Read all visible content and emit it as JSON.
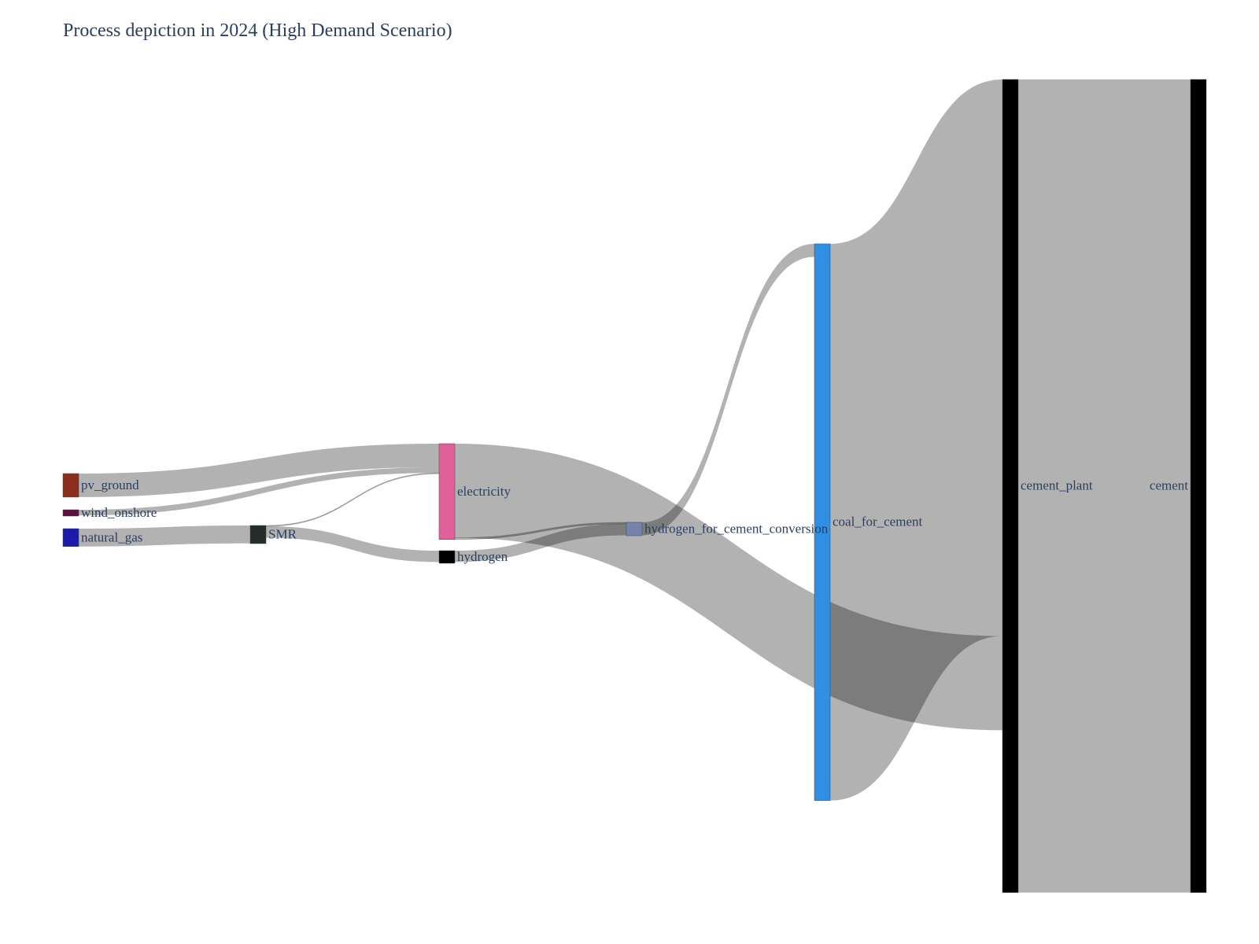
{
  "chart_data": {
    "type": "sankey",
    "title": "Process depiction in 2024 (High Demand Scenario)",
    "nodes": [
      {
        "id": "pv_ground",
        "label": "pv_ground",
        "color": "#8b2e1d"
      },
      {
        "id": "wind_onshore",
        "label": "wind_onshore",
        "color": "#5e0f3e"
      },
      {
        "id": "natural_gas",
        "label": "natural_gas",
        "color": "#1c1aab"
      },
      {
        "id": "SMR",
        "label": "SMR",
        "color": "#252d2a"
      },
      {
        "id": "electricity",
        "label": "electricity",
        "color": "#e0609a"
      },
      {
        "id": "hydrogen",
        "label": "hydrogen",
        "color": "#000000"
      },
      {
        "id": "hydrogen_for_cement_conversion",
        "label": "hydrogen_for_cement_conversion",
        "color": "#7684ad"
      },
      {
        "id": "coal_for_cement",
        "label": "coal_for_cement",
        "color": "#2f8fe3"
      },
      {
        "id": "cement_plant",
        "label": "cement_plant",
        "color": "#000000"
      },
      {
        "id": "cement",
        "label": "cement",
        "color": "#000000"
      }
    ],
    "links": [
      {
        "source": "pv_ground",
        "target": "electricity",
        "value": 29
      },
      {
        "source": "wind_onshore",
        "target": "electricity",
        "value": 7
      },
      {
        "source": "SMR",
        "target": "electricity",
        "value": 1
      },
      {
        "source": "natural_gas",
        "target": "SMR",
        "value": 22
      },
      {
        "source": "SMR",
        "target": "hydrogen",
        "value": 14
      },
      {
        "source": "electricity",
        "target": "hydrogen_for_cement_conversion",
        "value": 2
      },
      {
        "source": "hydrogen",
        "target": "hydrogen_for_cement_conversion",
        "value": 14
      },
      {
        "source": "electricity",
        "target": "cement_plant",
        "value": 116
      },
      {
        "source": "hydrogen_for_cement_conversion",
        "target": "coal_for_cement",
        "value": 16
      },
      {
        "source": "coal_for_cement",
        "target": "cement_plant",
        "value": 686
      },
      {
        "source": "cement_plant",
        "target": "cement",
        "value": 1002
      }
    ],
    "link_color": "#cccccc",
    "link_opacity": 0.3
  }
}
